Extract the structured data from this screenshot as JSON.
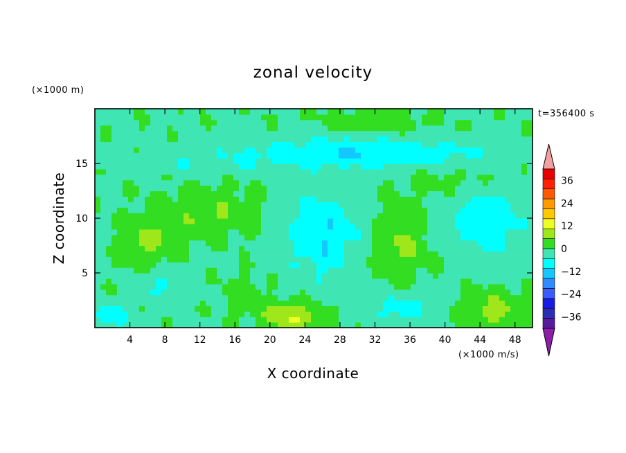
{
  "chart_data": {
    "type": "heatmap",
    "title": "zonal velocity",
    "xlabel": "X coordinate",
    "ylabel": "Z coordinate",
    "x_unit": "(×1000 m/s)",
    "y_unit": "(×1000 m)",
    "time_label": "t=356400 s",
    "xlim": [
      0,
      50
    ],
    "ylim": [
      0,
      20
    ],
    "x_ticks": [
      4,
      8,
      12,
      16,
      20,
      24,
      28,
      32,
      36,
      40,
      44,
      48
    ],
    "y_ticks": [
      5,
      10,
      15
    ],
    "colorbar": {
      "ticks": [
        36,
        24,
        12,
        0,
        -12,
        -24,
        -36
      ],
      "levels": [
        -42,
        -36,
        -30,
        -24,
        -18,
        -12,
        -6,
        0,
        6,
        12,
        18,
        24,
        30,
        36,
        42
      ],
      "colors": [
        "#5a1a9e",
        "#2c2cb4",
        "#1a1ae6",
        "#3a5cff",
        "#2f8cff",
        "#14c8ff",
        "#00ffff",
        "#3fe6b4",
        "#33dd22",
        "#9fe61a",
        "#eeff22",
        "#ffc800",
        "#ff9a00",
        "#ff5a00",
        "#ff2200",
        "#e60000"
      ],
      "under_color": "#8c1fa8",
      "over_color": "#f2a0a0"
    },
    "features": [
      {
        "x": 22.5,
        "z": 1.0,
        "sx": 3.2,
        "sz": 1.3,
        "amp": 14
      },
      {
        "x": 6.0,
        "z": 8.0,
        "sx": 3.0,
        "sz": 2.2,
        "amp": 8
      },
      {
        "x": 13.0,
        "z": 10.5,
        "sx": 5.0,
        "sz": 2.2,
        "amp": 7
      },
      {
        "x": 35.0,
        "z": 7.5,
        "sx": 2.8,
        "sz": 3.2,
        "amp": 8
      },
      {
        "x": 45.5,
        "z": 1.5,
        "sx": 3.5,
        "sz": 1.8,
        "amp": 9
      },
      {
        "x": 32.0,
        "z": 18.8,
        "sx": 6.0,
        "sz": 1.0,
        "amp": 6
      },
      {
        "x": 26.0,
        "z": 8.5,
        "sx": 4.0,
        "sz": 4.0,
        "amp": -11
      },
      {
        "x": 45.0,
        "z": 9.5,
        "sx": 4.0,
        "sz": 3.0,
        "amp": -10
      },
      {
        "x": 30.0,
        "z": 16.0,
        "sx": 14.0,
        "sz": 1.4,
        "amp": -11
      },
      {
        "x": 35.0,
        "z": 1.8,
        "sx": 3.5,
        "sz": 1.5,
        "amp": -8
      },
      {
        "x": 8.0,
        "z": 4.0,
        "sx": 3.0,
        "sz": 1.5,
        "amp": -6
      },
      {
        "x": 1.5,
        "z": 1.0,
        "sx": 2.5,
        "sz": 1.2,
        "amp": -8
      },
      {
        "x": 17.0,
        "z": 3.0,
        "sx": 2.5,
        "sz": 1.8,
        "amp": 4
      },
      {
        "x": 40.0,
        "z": 13.5,
        "sx": 6.0,
        "sz": 1.2,
        "amp": 3
      },
      {
        "x": 10.0,
        "z": 15.0,
        "sx": 10.0,
        "sz": 1.0,
        "amp": -3
      }
    ],
    "base_value": -1
  }
}
